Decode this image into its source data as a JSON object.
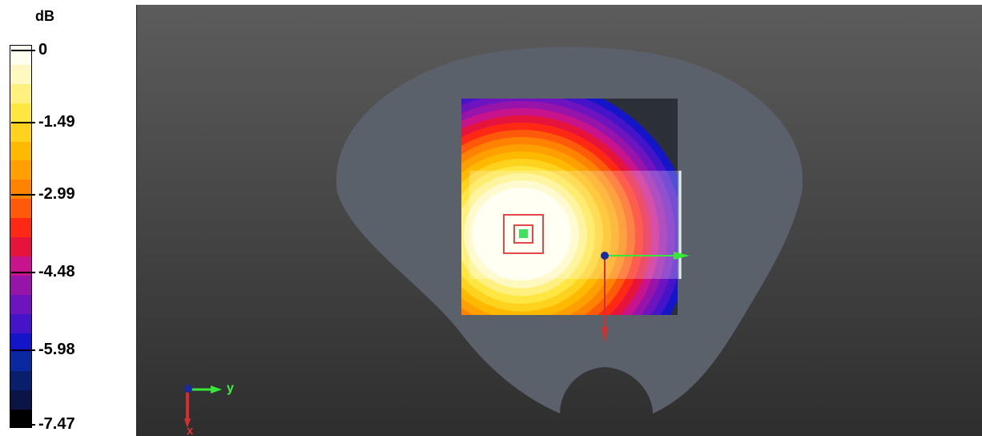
{
  "legend": {
    "unit": "dB",
    "ticks": [
      "0",
      "-1.49",
      "-2.99",
      "-4.48",
      "-5.98",
      "-7.47"
    ],
    "colorbar": [
      "#fffff0",
      "#fff8c0",
      "#fff080",
      "#ffe640",
      "#ffd21e",
      "#ffb900",
      "#ffa000",
      "#ff8200",
      "#ff5a0a",
      "#ff2814",
      "#e6143c",
      "#c8148c",
      "#9614aa",
      "#6e14be",
      "#4614c8",
      "#1414c8",
      "#0a28a0",
      "#0a1e6e",
      "#0a1446",
      "#000000"
    ]
  },
  "axes_triad": {
    "y_label": "y",
    "x_label": "x"
  },
  "colors": {
    "phantom": "#5a616a",
    "scan_dark": "#2a2f38",
    "mark": "#e44848",
    "axis_green": "#38e838",
    "axis_red": "#d03030",
    "axis_blue": "#1a2aa0"
  }
}
